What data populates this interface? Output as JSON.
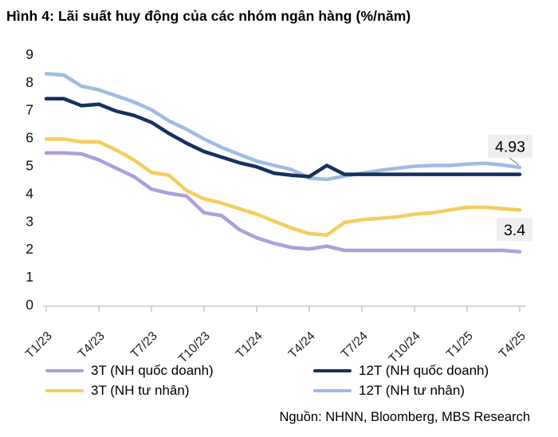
{
  "title": "Hình 4: Lãi suất huy động của các nhóm ngân hàng (%/năm)",
  "source": "Nguồn: NHNN, Bloomberg, MBS Research",
  "colors": {
    "axis": "#c9c9c9",
    "annotation_box": "#efefef",
    "leader_line": "#9a9a9a"
  },
  "chart_data": {
    "type": "line",
    "title": "Hình 4: Lãi suất huy động của các nhóm ngân hàng (%/năm)",
    "xlabel": "",
    "ylabel": "",
    "ylim": [
      0,
      9
    ],
    "y_ticks": [
      0,
      1,
      2,
      3,
      4,
      5,
      6,
      7,
      8,
      9
    ],
    "x_ticks": [
      "T1/23",
      "T4/23",
      "T7/23",
      "T10/23",
      "T1/24",
      "T4/24",
      "T7/24",
      "T10/24",
      "T1/25",
      "T4/25"
    ],
    "grid": false,
    "legend_position": "bottom",
    "series": [
      {
        "name": "3T (NH quốc doanh)",
        "color": "#b09ddb",
        "values": [
          5.45,
          5.45,
          5.42,
          5.2,
          4.9,
          4.6,
          4.15,
          4.0,
          3.9,
          3.3,
          3.2,
          2.7,
          2.4,
          2.2,
          2.05,
          2.0,
          2.1,
          1.95,
          1.95,
          1.95,
          1.95,
          1.95,
          1.95,
          1.95,
          1.95,
          1.95,
          1.95,
          1.9
        ]
      },
      {
        "name": "3T (NH tư nhân)",
        "color": "#f5cd5f",
        "values": [
          5.95,
          5.95,
          5.85,
          5.85,
          5.55,
          5.2,
          4.75,
          4.65,
          4.1,
          3.8,
          3.65,
          3.45,
          3.25,
          3.0,
          2.75,
          2.55,
          2.5,
          2.95,
          3.05,
          3.1,
          3.15,
          3.25,
          3.3,
          3.4,
          3.5,
          3.5,
          3.45,
          3.4
        ]
      },
      {
        "name": "12T (NH quốc doanh)",
        "color": "#17305f",
        "values": [
          7.4,
          7.4,
          7.15,
          7.2,
          6.95,
          6.8,
          6.55,
          6.15,
          5.8,
          5.5,
          5.3,
          5.1,
          4.95,
          4.72,
          4.65,
          4.6,
          5.0,
          4.68,
          4.68,
          4.68,
          4.68,
          4.68,
          4.68,
          4.68,
          4.68,
          4.68,
          4.68,
          4.68
        ]
      },
      {
        "name": "12T (NH tư nhân)",
        "color": "#9fbce1",
        "values": [
          8.3,
          8.25,
          7.85,
          7.72,
          7.5,
          7.28,
          7.0,
          6.6,
          6.3,
          5.95,
          5.65,
          5.4,
          5.16,
          5.0,
          4.85,
          4.55,
          4.5,
          4.62,
          4.72,
          4.82,
          4.9,
          4.97,
          5.0,
          5.0,
          5.05,
          5.08,
          5.02,
          4.93
        ]
      }
    ],
    "annotations": [
      {
        "series": "12T (NH tư nhân)",
        "text": "4.93",
        "placement": "above"
      },
      {
        "series": "3T (NH tư nhân)",
        "text": "3.4",
        "placement": "below"
      }
    ]
  },
  "legend": {
    "items": [
      {
        "label": "3T (NH quốc doanh)",
        "color": "#b09ddb"
      },
      {
        "label": "3T (NH tư nhân)",
        "color": "#f5cd5f"
      },
      {
        "label": "12T (NH quốc doanh)",
        "color": "#17305f"
      },
      {
        "label": "12T (NH tư nhân)",
        "color": "#9fbce1"
      }
    ]
  }
}
